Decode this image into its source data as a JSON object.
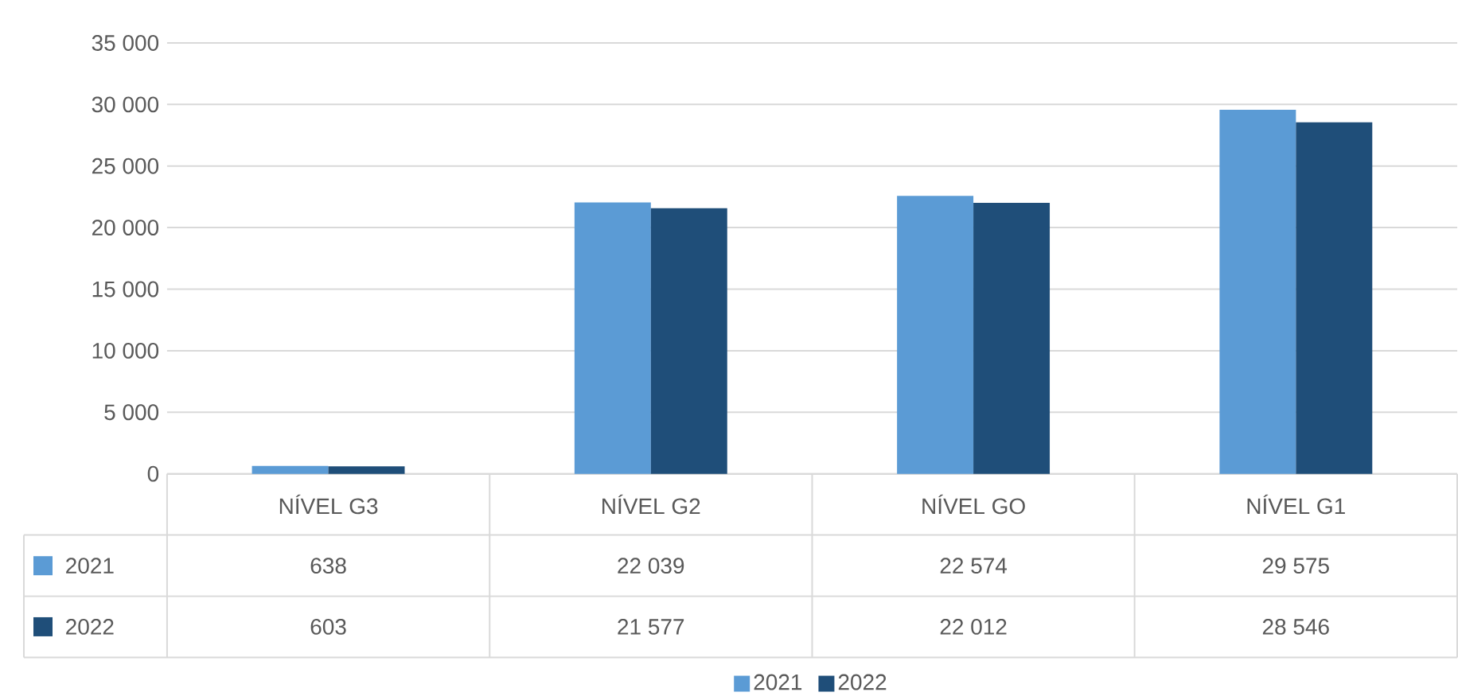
{
  "chart_data": {
    "type": "bar",
    "categories": [
      "NÍVEL G3",
      "NÍVEL G2",
      "NÍVEL GO",
      "NÍVEL G1"
    ],
    "series": [
      {
        "name": "2021",
        "color": "#5b9bd5",
        "values": [
          638,
          22039,
          22574,
          29575
        ],
        "value_labels": [
          "638",
          "22 039",
          "22 574",
          "29 575"
        ]
      },
      {
        "name": "2022",
        "color": "#1f4e79",
        "values": [
          603,
          21577,
          22012,
          28546
        ],
        "value_labels": [
          "603",
          "21 577",
          "22 012",
          "28 546"
        ]
      }
    ],
    "ylim": [
      0,
      35000
    ],
    "yticks": [
      0,
      {
        "value": 5000,
        "label": "5 000"
      },
      {
        "value": 10000,
        "label": "10 000"
      },
      {
        "value": 15000,
        "label": "15 000"
      },
      {
        "value": 20000,
        "label": "20 000"
      },
      {
        "value": 25000,
        "label": "25 000"
      },
      {
        "value": 30000,
        "label": "30 000"
      },
      {
        "value": 35000,
        "label": "35 000"
      }
    ],
    "grid": "y",
    "legend": "bottom"
  }
}
